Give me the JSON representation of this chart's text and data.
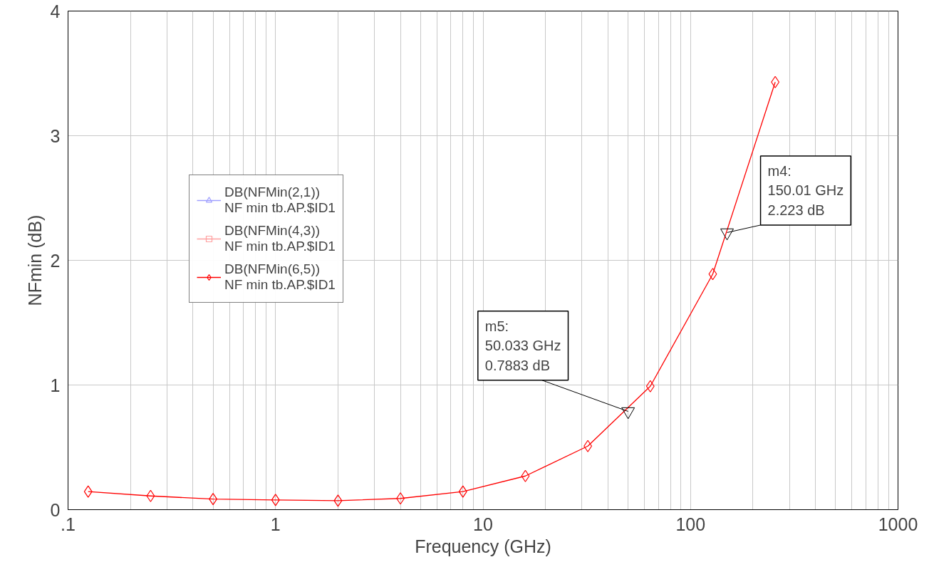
{
  "chart_data": {
    "type": "line",
    "xlabel": "Frequency (GHz)",
    "ylabel": "NFmin (dB)",
    "log": "x",
    "xlim": [
      0.1,
      1000
    ],
    "xticks": [
      {
        "value": 0.1,
        "label": ".1"
      },
      1,
      10,
      100,
      1000
    ],
    "ylim": [
      0,
      4
    ],
    "yticks": [
      0,
      1,
      2,
      3,
      4
    ],
    "grid": true,
    "legend": "left",
    "x": [
      0.125,
      0.25,
      0.5,
      1,
      2,
      4,
      8,
      16,
      32,
      64,
      128,
      256
    ],
    "series": [
      {
        "name": "DB(NFMin(2,1))\nNF min tb.AP.$ID1",
        "color": "#a0a0ff",
        "marker": "triangle",
        "values": [
          null,
          null,
          null,
          null,
          null,
          null,
          null,
          null,
          null,
          null,
          null,
          null
        ]
      },
      {
        "name": "DB(NFMin(4,3))\nNF min tb.AP.$ID1",
        "color": "#ffa0a0",
        "marker": "square",
        "values": [
          null,
          null,
          null,
          null,
          null,
          null,
          null,
          null,
          null,
          null,
          null,
          null
        ]
      },
      {
        "name": "DB(NFMin(6,5))\nNF min tb.AP.$ID1",
        "color": "#ff0000",
        "marker": "diamond",
        "values": [
          0.145,
          0.11,
          0.085,
          0.078,
          0.072,
          0.09,
          0.145,
          0.27,
          0.51,
          0.99,
          1.89,
          3.43
        ]
      }
    ],
    "annotations": [
      {
        "text": "m5:\n50.033 GHz\n0.7883 dB",
        "x": 50.033,
        "y": 0.7883
      },
      {
        "text": "m4:\n150.01 GHz\n2.223 dB",
        "x": 150.01,
        "y": 2.223
      }
    ]
  }
}
